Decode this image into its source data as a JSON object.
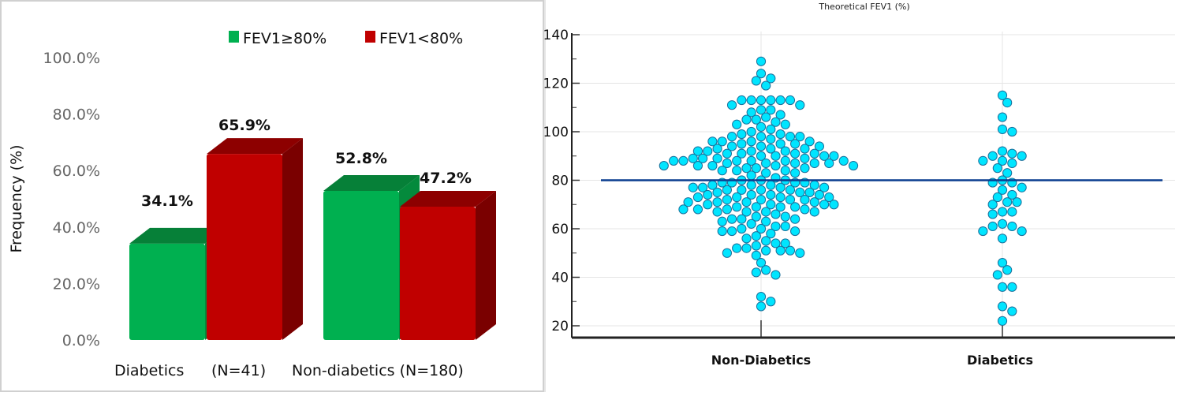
{
  "chart_data": [
    {
      "type": "bar",
      "title": "",
      "ylabel": "Frequency (%)",
      "xlabel": "",
      "ylim": [
        0,
        100
      ],
      "yticks": [
        "0.0%",
        "20.0%",
        "40.0%",
        "60.0%",
        "80.0%",
        "100.0%"
      ],
      "categories": [
        "Diabetics    (N=41)",
        "Non-diabetics (N=180)"
      ],
      "category_labels": [
        "Diabetics",
        "(N=41)",
        "Non-diabetics (N=180)"
      ],
      "legend_position": "top",
      "series": [
        {
          "name": "FEV1≥80%",
          "values": [
            34.1,
            52.8
          ],
          "color": "#00b050",
          "labels": [
            "34.1%",
            "52.8%"
          ]
        },
        {
          "name": "FEV1<80%",
          "values": [
            65.9,
            47.2
          ],
          "color": "#c00000",
          "labels": [
            "65.9%",
            "47.2%"
          ]
        }
      ],
      "style": "3d"
    },
    {
      "type": "scatter",
      "subtype": "dot-plot",
      "title": "Theoretical FEV1  (%)",
      "ylim": [
        15,
        145
      ],
      "yticks": [
        20,
        40,
        60,
        80,
        100,
        120,
        140
      ],
      "categories": [
        "Non-Diabetics",
        "Diabetics"
      ],
      "reference_line": {
        "y": 80,
        "color": "#0a3d8f"
      },
      "marker_color": "#00e5ff",
      "grid": true,
      "series": [
        {
          "category": "Non-Diabetics",
          "values": [
            129,
            124,
            122,
            121,
            119,
            113,
            113,
            113,
            113,
            113,
            113,
            111,
            111,
            109,
            109,
            108,
            107,
            106,
            105,
            105,
            104,
            103,
            103,
            102,
            101,
            100,
            99,
            99,
            98,
            98,
            98,
            98,
            97,
            96,
            96,
            96,
            96,
            95,
            95,
            95,
            94,
            94,
            94,
            93,
            93,
            93,
            92,
            92,
            92,
            92,
            91,
            91,
            91,
            91,
            90,
            90,
            90,
            90,
            89,
            89,
            89,
            89,
            88,
            88,
            88,
            88,
            88,
            88,
            87,
            87,
            87,
            87,
            87,
            86,
            86,
            86,
            86,
            86,
            85,
            85,
            85,
            84,
            84,
            84,
            83,
            83,
            82,
            81,
            80,
            80,
            80,
            79,
            79,
            79,
            79,
            78,
            78,
            78,
            78,
            77,
            77,
            77,
            77,
            76,
            76,
            76,
            76,
            75,
            75,
            75,
            74,
            74,
            74,
            74,
            73,
            73,
            73,
            73,
            72,
            72,
            72,
            72,
            71,
            71,
            71,
            71,
            70,
            70,
            70,
            70,
            69,
            69,
            69,
            69,
            68,
            68,
            68,
            68,
            67,
            67,
            67,
            67,
            66,
            65,
            65,
            64,
            64,
            64,
            63,
            63,
            62,
            61,
            61,
            60,
            60,
            59,
            59,
            59,
            58,
            57,
            56,
            55,
            54,
            54,
            53,
            52,
            52,
            51,
            51,
            51,
            50,
            50,
            49,
            46,
            43,
            42,
            41,
            32,
            30,
            28
          ]
        },
        {
          "category": "Diabetics",
          "values": [
            115,
            112,
            106,
            101,
            100,
            92,
            91,
            90,
            90,
            88,
            88,
            87,
            85,
            83,
            80,
            79,
            79,
            77,
            76,
            74,
            73,
            71,
            71,
            70,
            67,
            67,
            66,
            62,
            61,
            61,
            59,
            59,
            56,
            46,
            43,
            41,
            36,
            36,
            28,
            26,
            22
          ]
        }
      ]
    }
  ]
}
